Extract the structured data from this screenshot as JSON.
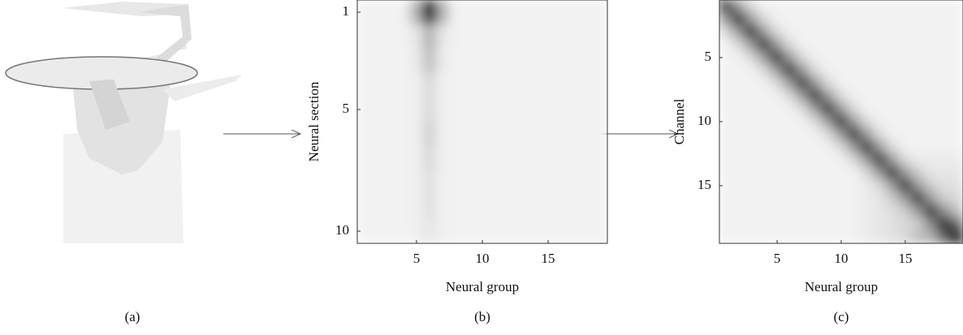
{
  "image_panel": {
    "caption": "(a)"
  },
  "chart_data": [
    {
      "type": "heatmap",
      "caption": "(b)",
      "x_label": "Neural group",
      "y_label": "Neural section",
      "cmap": "gray_r",
      "xlim": [
        0.5,
        19.5
      ],
      "ylim": [
        0.5,
        10.5
      ],
      "xticks": [
        5,
        10,
        15
      ],
      "yticks": [
        1,
        5,
        10
      ],
      "values": [
        [
          0.05,
          0.05,
          0.05,
          0.05,
          0.3,
          1,
          0.3,
          0.05,
          0.05,
          0.05,
          0.05,
          0.05,
          0.05,
          0.05,
          0.05,
          0.05,
          0.05,
          0.05,
          0.05
        ],
        [
          0.05,
          0.05,
          0.05,
          0.05,
          0.1,
          0.3,
          0.1,
          0.05,
          0.05,
          0.05,
          0.05,
          0.05,
          0.05,
          0.05,
          0.05,
          0.05,
          0.05,
          0.05,
          0.05
        ],
        [
          0.05,
          0.05,
          0.05,
          0.05,
          0.08,
          0.25,
          0.08,
          0.05,
          0.05,
          0.05,
          0.05,
          0.05,
          0.05,
          0.05,
          0.05,
          0.05,
          0.05,
          0.05,
          0.05
        ],
        [
          0.05,
          0.05,
          0.05,
          0.05,
          0.06,
          0.15,
          0.06,
          0.05,
          0.05,
          0.05,
          0.05,
          0.05,
          0.05,
          0.05,
          0.05,
          0.05,
          0.05,
          0.05,
          0.05
        ],
        [
          0.05,
          0.05,
          0.05,
          0.05,
          0.06,
          0.15,
          0.06,
          0.05,
          0.05,
          0.05,
          0.05,
          0.05,
          0.05,
          0.05,
          0.05,
          0.05,
          0.05,
          0.05,
          0.05
        ],
        [
          0.05,
          0.05,
          0.05,
          0.05,
          0.06,
          0.18,
          0.06,
          0.05,
          0.05,
          0.05,
          0.05,
          0.05,
          0.05,
          0.05,
          0.05,
          0.05,
          0.05,
          0.05,
          0.05
        ],
        [
          0.05,
          0.05,
          0.05,
          0.05,
          0.06,
          0.15,
          0.06,
          0.05,
          0.05,
          0.05,
          0.05,
          0.05,
          0.05,
          0.05,
          0.05,
          0.05,
          0.05,
          0.05,
          0.05
        ],
        [
          0.05,
          0.05,
          0.05,
          0.05,
          0.06,
          0.12,
          0.06,
          0.05,
          0.05,
          0.05,
          0.05,
          0.05,
          0.05,
          0.05,
          0.05,
          0.05,
          0.05,
          0.05,
          0.05
        ],
        [
          0.05,
          0.05,
          0.05,
          0.05,
          0.06,
          0.12,
          0.06,
          0.05,
          0.05,
          0.05,
          0.05,
          0.05,
          0.05,
          0.05,
          0.05,
          0.05,
          0.05,
          0.05,
          0.05
        ],
        [
          0.05,
          0.05,
          0.05,
          0.05,
          0.06,
          0.1,
          0.06,
          0.05,
          0.05,
          0.05,
          0.05,
          0.05,
          0.05,
          0.05,
          0.05,
          0.05,
          0.05,
          0.05,
          0.05
        ]
      ]
    },
    {
      "type": "heatmap",
      "caption": "(c)",
      "x_label": "Neural group",
      "y_label": "Channel",
      "cmap": "gray_r",
      "xlim": [
        0.5,
        19.5
      ],
      "ylim": [
        0.5,
        19.5
      ],
      "xticks": [
        5,
        10,
        15
      ],
      "yticks": [
        5,
        10,
        15
      ],
      "values": [
        [
          0.85,
          0.4,
          0.15,
          0.05,
          0.05,
          0.05,
          0.05,
          0.05,
          0.05,
          0.05,
          0.05,
          0.05,
          0.05,
          0.05,
          0.05,
          0.05,
          0.05,
          0.05,
          0.05
        ],
        [
          0.4,
          0.85,
          0.4,
          0.15,
          0.05,
          0.05,
          0.05,
          0.05,
          0.05,
          0.05,
          0.05,
          0.05,
          0.05,
          0.05,
          0.05,
          0.05,
          0.05,
          0.05,
          0.05
        ],
        [
          0.15,
          0.4,
          0.85,
          0.4,
          0.15,
          0.05,
          0.05,
          0.05,
          0.05,
          0.05,
          0.05,
          0.05,
          0.05,
          0.05,
          0.05,
          0.05,
          0.05,
          0.05,
          0.05
        ],
        [
          0.05,
          0.15,
          0.4,
          0.85,
          0.4,
          0.15,
          0.05,
          0.05,
          0.05,
          0.05,
          0.05,
          0.05,
          0.05,
          0.05,
          0.05,
          0.05,
          0.05,
          0.05,
          0.05
        ],
        [
          0.05,
          0.05,
          0.15,
          0.4,
          0.85,
          0.4,
          0.15,
          0.05,
          0.05,
          0.05,
          0.05,
          0.05,
          0.05,
          0.05,
          0.05,
          0.05,
          0.05,
          0.05,
          0.05
        ],
        [
          0.05,
          0.05,
          0.05,
          0.15,
          0.4,
          0.85,
          0.4,
          0.15,
          0.05,
          0.05,
          0.05,
          0.05,
          0.05,
          0.05,
          0.05,
          0.05,
          0.05,
          0.05,
          0.05
        ],
        [
          0.05,
          0.05,
          0.05,
          0.05,
          0.15,
          0.4,
          0.85,
          0.4,
          0.15,
          0.05,
          0.05,
          0.05,
          0.05,
          0.05,
          0.05,
          0.05,
          0.05,
          0.05,
          0.05
        ],
        [
          0.05,
          0.05,
          0.05,
          0.05,
          0.05,
          0.15,
          0.4,
          0.85,
          0.4,
          0.15,
          0.05,
          0.05,
          0.05,
          0.05,
          0.05,
          0.05,
          0.05,
          0.05,
          0.05
        ],
        [
          0.05,
          0.05,
          0.05,
          0.05,
          0.05,
          0.05,
          0.15,
          0.4,
          0.85,
          0.4,
          0.15,
          0.05,
          0.05,
          0.05,
          0.05,
          0.05,
          0.05,
          0.05,
          0.05
        ],
        [
          0.05,
          0.05,
          0.05,
          0.05,
          0.05,
          0.05,
          0.05,
          0.15,
          0.4,
          0.85,
          0.4,
          0.15,
          0.05,
          0.05,
          0.05,
          0.05,
          0.05,
          0.05,
          0.05
        ],
        [
          0.05,
          0.05,
          0.05,
          0.05,
          0.05,
          0.05,
          0.05,
          0.05,
          0.15,
          0.4,
          0.85,
          0.4,
          0.15,
          0.05,
          0.05,
          0.05,
          0.05,
          0.05,
          0.05
        ],
        [
          0.05,
          0.05,
          0.05,
          0.05,
          0.05,
          0.05,
          0.05,
          0.05,
          0.05,
          0.15,
          0.4,
          0.85,
          0.4,
          0.15,
          0.05,
          0.05,
          0.05,
          0.05,
          0.05
        ],
        [
          0.05,
          0.05,
          0.05,
          0.05,
          0.05,
          0.05,
          0.05,
          0.05,
          0.05,
          0.05,
          0.15,
          0.4,
          0.85,
          0.4,
          0.15,
          0.08,
          0.08,
          0.08,
          0.08
        ],
        [
          0.05,
          0.05,
          0.05,
          0.05,
          0.05,
          0.05,
          0.05,
          0.05,
          0.05,
          0.05,
          0.05,
          0.15,
          0.4,
          0.85,
          0.4,
          0.2,
          0.1,
          0.1,
          0.1
        ],
        [
          0.05,
          0.05,
          0.05,
          0.05,
          0.05,
          0.05,
          0.05,
          0.05,
          0.05,
          0.05,
          0.05,
          0.08,
          0.15,
          0.4,
          0.85,
          0.4,
          0.2,
          0.12,
          0.12
        ],
        [
          0.05,
          0.05,
          0.05,
          0.05,
          0.05,
          0.05,
          0.05,
          0.05,
          0.05,
          0.05,
          0.05,
          0.08,
          0.1,
          0.2,
          0.4,
          0.85,
          0.4,
          0.2,
          0.15
        ],
        [
          0.05,
          0.05,
          0.05,
          0.05,
          0.05,
          0.05,
          0.05,
          0.05,
          0.05,
          0.05,
          0.05,
          0.08,
          0.1,
          0.12,
          0.2,
          0.4,
          0.85,
          0.45,
          0.25
        ],
        [
          0.05,
          0.05,
          0.05,
          0.05,
          0.05,
          0.05,
          0.05,
          0.05,
          0.05,
          0.05,
          0.05,
          0.08,
          0.1,
          0.12,
          0.15,
          0.2,
          0.45,
          0.9,
          0.6
        ],
        [
          0.05,
          0.05,
          0.05,
          0.05,
          0.05,
          0.05,
          0.05,
          0.05,
          0.05,
          0.05,
          0.05,
          0.08,
          0.1,
          0.12,
          0.15,
          0.25,
          0.3,
          0.6,
          1
        ]
      ]
    }
  ]
}
